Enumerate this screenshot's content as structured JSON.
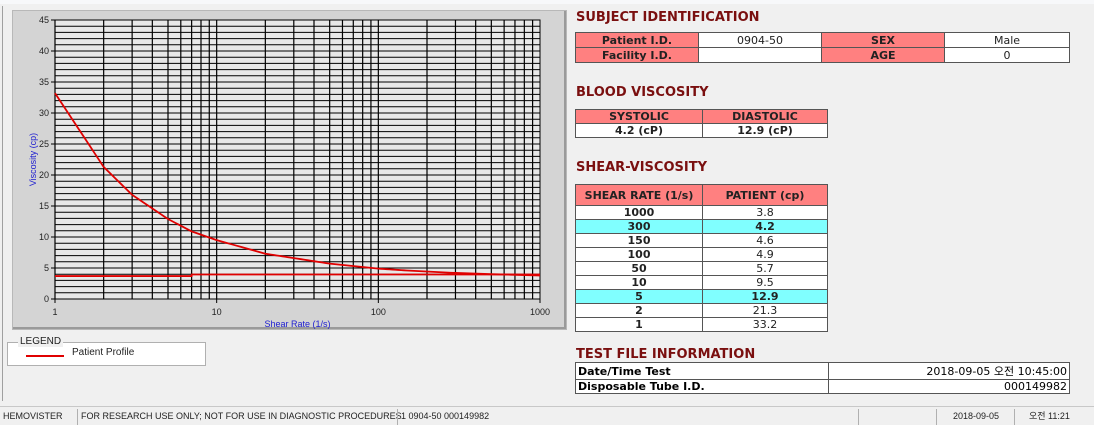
{
  "chart_data": {
    "type": "line",
    "xlabel": "Shear Rate (1/s)",
    "ylabel": "Viscosity (cp)",
    "xscale": "log",
    "xlim": [
      1,
      1000
    ],
    "ylim": [
      0,
      45
    ],
    "xticks": [
      "1",
      "10",
      "100",
      "1000"
    ],
    "yticks": [
      "0",
      "5",
      "10",
      "15",
      "20",
      "25",
      "30",
      "35",
      "40",
      "45"
    ],
    "grid": true,
    "series": [
      {
        "name": "Patient Profile",
        "color": "#e00000",
        "x": [
          1,
          2,
          3,
          5,
          7,
          10,
          20,
          30,
          50,
          100,
          150,
          300,
          500,
          1000
        ],
        "y": [
          33.2,
          21.3,
          16.8,
          12.9,
          10.9,
          9.5,
          7.3,
          6.6,
          5.7,
          4.9,
          4.6,
          4.2,
          4.0,
          3.8
        ]
      },
      {
        "color": "#e00000",
        "x": [
          1,
          7,
          7,
          1000
        ],
        "y": [
          3.7,
          3.7,
          3.95,
          3.95
        ]
      }
    ],
    "legend": {
      "title": "LEGEND",
      "placement": "bottom-left"
    }
  },
  "subject": {
    "title": "SUBJECT IDENTIFICATION",
    "patient_id_label": "Patient I.D.",
    "patient_id": "0904-50",
    "sex_label": "SEX",
    "sex": "Male",
    "facility_label": "Facility I.D.",
    "facility": "",
    "age_label": "AGE",
    "age": "0"
  },
  "blood": {
    "title": "BLOOD VISCOSITY",
    "systolic_label": "SYSTOLIC",
    "diastolic_label": "DIASTOLIC",
    "systolic": "4.2 (cP)",
    "diastolic": "12.9 (cP)"
  },
  "shear": {
    "title": "SHEAR-VISCOSITY",
    "col1": "SHEAR RATE (1/s)",
    "col2": "PATIENT (cp)",
    "highlight_color": "#80ffff",
    "rows": [
      [
        "1000",
        "3.8",
        false
      ],
      [
        "300",
        "4.2",
        true
      ],
      [
        "150",
        "4.6",
        false
      ],
      [
        "100",
        "4.9",
        false
      ],
      [
        "50",
        "5.7",
        false
      ],
      [
        "10",
        "9.5",
        false
      ],
      [
        "5",
        "12.9",
        true
      ],
      [
        "2",
        "21.3",
        false
      ],
      [
        "1",
        "33.2",
        false
      ]
    ]
  },
  "testfile": {
    "title": "TEST FILE INFORMATION",
    "date_label": "Date/Time Test",
    "date": "2018-09-05   오전 10:45:00",
    "tube_label": "Disposable Tube I.D.",
    "tube": "000149982"
  },
  "status": {
    "app": "HEMOVISTER",
    "notice": "FOR RESEARCH USE ONLY; NOT FOR USE IN DIAGNOSTIC PROCEDURES",
    "record": "1  0904-50  000149982",
    "blank": "",
    "date": "2018-09-05",
    "time": "오전 11:21"
  }
}
